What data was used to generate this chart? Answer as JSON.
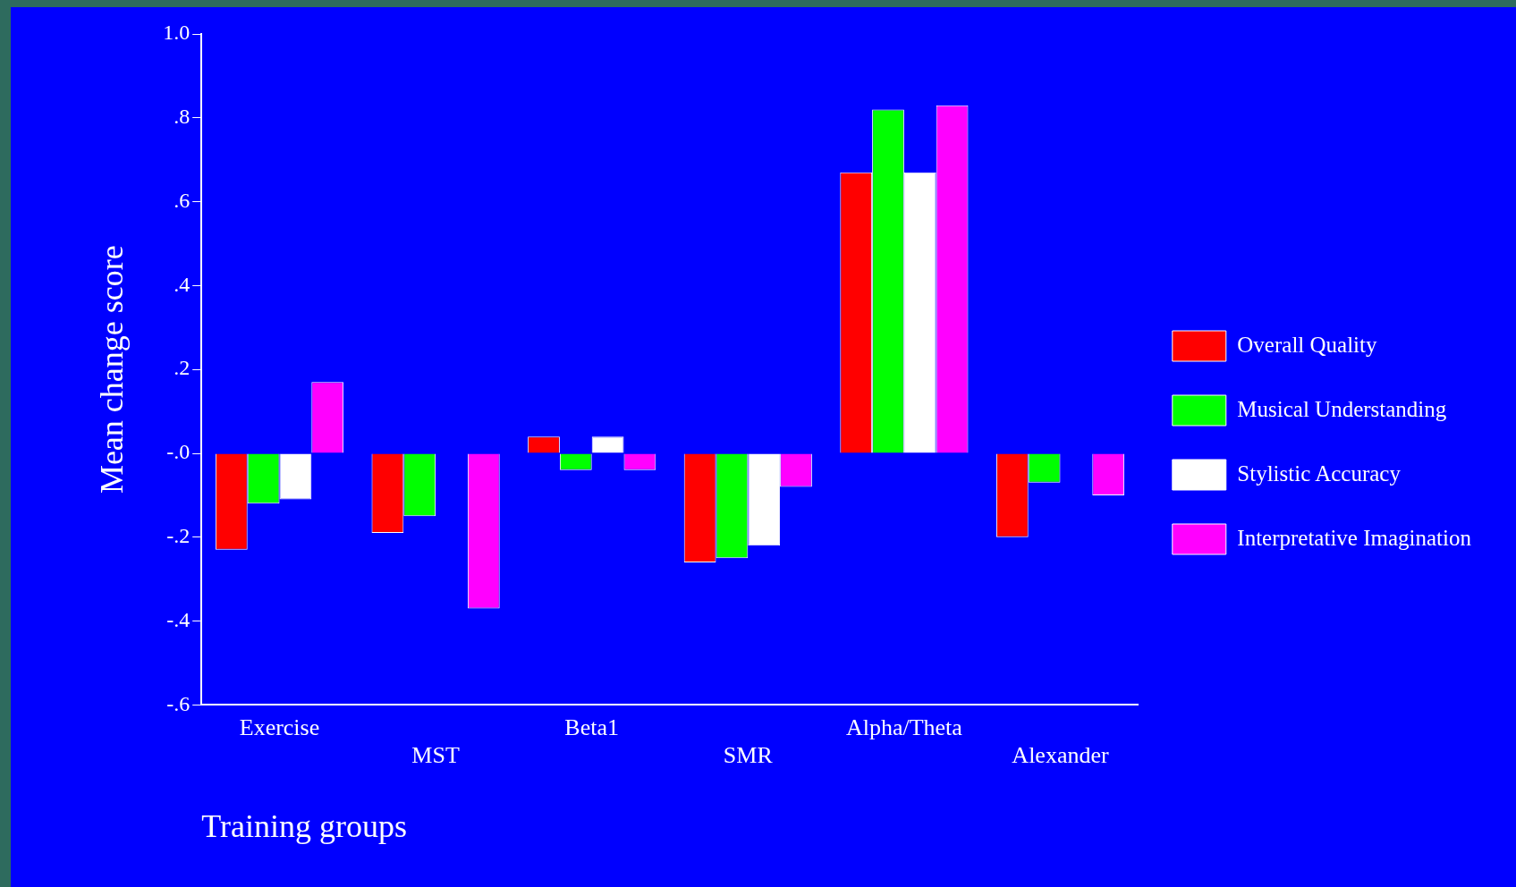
{
  "chart_data": {
    "type": "bar",
    "xlabel": "Training groups",
    "ylabel": "Mean change score",
    "categories": [
      "Exercise",
      "MST",
      "Beta1",
      "SMR",
      "Alpha/Theta",
      "Alexander"
    ],
    "series": [
      {
        "name": "Overall Quality",
        "color": "#ff0000",
        "values": [
          -0.23,
          -0.19,
          0.04,
          -0.26,
          0.67,
          -0.2
        ]
      },
      {
        "name": "Musical Understanding",
        "color": "#00ff00",
        "values": [
          -0.12,
          -0.15,
          -0.04,
          -0.25,
          0.82,
          -0.07
        ]
      },
      {
        "name": "Stylistic Accuracy",
        "color": "#ffffff",
        "values": [
          -0.11,
          0,
          0.04,
          -0.22,
          0.67,
          0
        ]
      },
      {
        "name": "Interpretative Imagination",
        "color": "#ff00ff",
        "values": [
          0.17,
          -0.37,
          -0.04,
          -0.08,
          0.83,
          -0.1
        ]
      }
    ],
    "ylim": [
      -0.6,
      1.0
    ],
    "yticks": [
      {
        "value": 1.0,
        "label": "1.0"
      },
      {
        "value": 0.8,
        "label": ".8"
      },
      {
        "value": 0.6,
        "label": ".6"
      },
      {
        "value": 0.4,
        "label": ".4"
      },
      {
        "value": 0.2,
        "label": ".2"
      },
      {
        "value": 0,
        "label": "-.0"
      },
      {
        "value": -0.2,
        "label": "-.2"
      },
      {
        "value": -0.4,
        "label": "-.4"
      },
      {
        "value": -0.6,
        "label": "-.6"
      }
    ],
    "grid": false,
    "legend": "right"
  }
}
